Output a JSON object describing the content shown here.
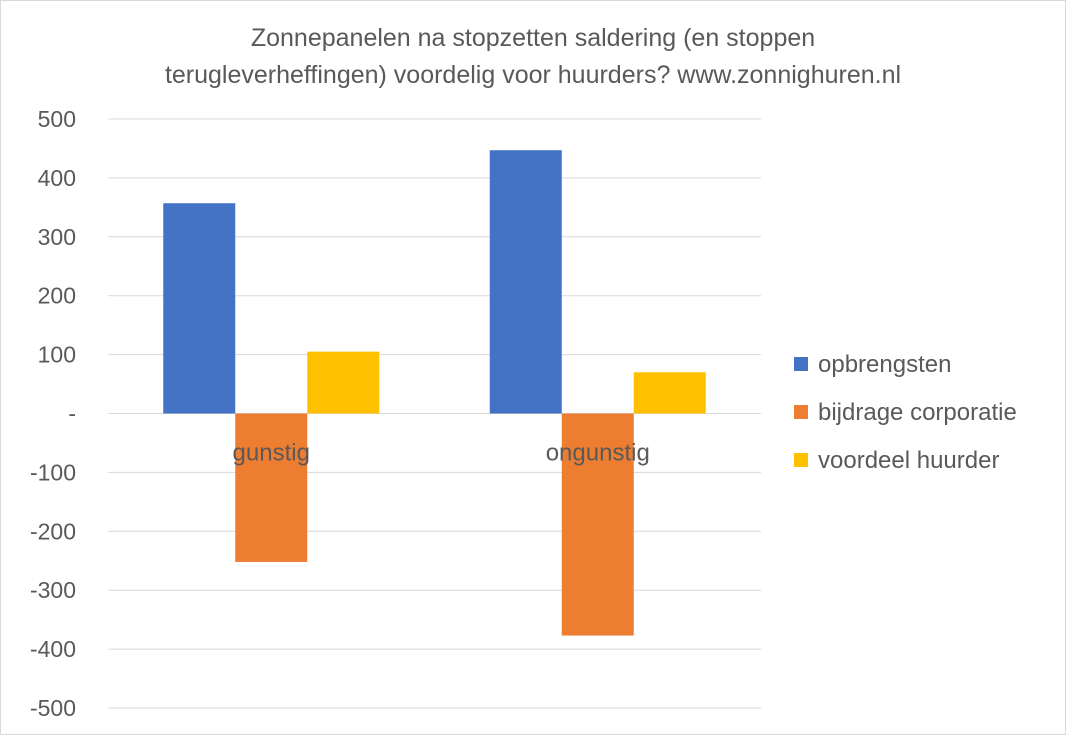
{
  "chart_data": {
    "type": "bar",
    "title_lines": [
      "Zonnepanelen na stopzetten saldering (en stoppen",
      "terugleverheffingen) voordelig voor huurders? www.zonnighuren.nl"
    ],
    "categories": [
      "gunstig",
      "ongunstig"
    ],
    "series": [
      {
        "name": "opbrengsten",
        "color": "#4472C4",
        "values": [
          357,
          447
        ]
      },
      {
        "name": "bijdrage corporatie",
        "color": "#ED7D31",
        "values": [
          -252,
          -377
        ]
      },
      {
        "name": "voordeel huurder",
        "color": "#FFC000",
        "values": [
          105,
          70
        ]
      }
    ],
    "ylim": [
      -500,
      500
    ],
    "yticks": [
      500,
      400,
      300,
      200,
      100,
      0,
      -100,
      -200,
      -300,
      -400,
      -500
    ],
    "ytick_labels": [
      "500",
      "400",
      "300",
      "200",
      "100",
      "-",
      "-100",
      "-200",
      "-300",
      "-400",
      "-500"
    ],
    "grid": true,
    "legend_position": "right",
    "xlabel": "",
    "ylabel": ""
  }
}
